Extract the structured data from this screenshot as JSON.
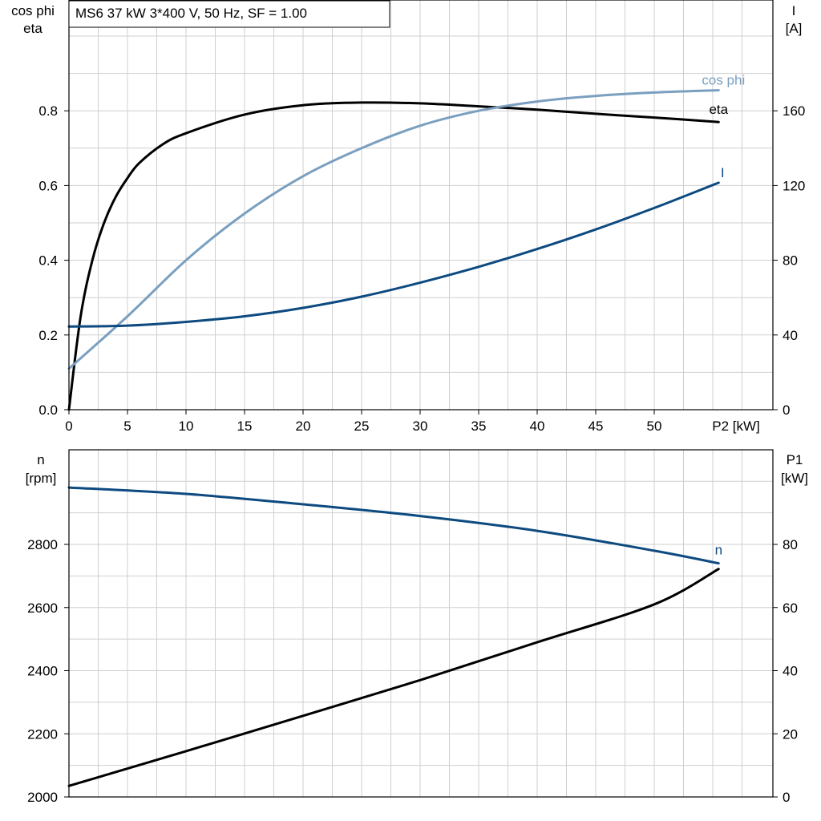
{
  "chart_data": [
    {
      "type": "line",
      "title": "MS6   37 kW   3*400 V, 50 Hz, SF = 1.00",
      "xlabel": "P2 [kW]",
      "ylabel_left": [
        "cos phi",
        "eta"
      ],
      "ylabel_right": [
        "I",
        "[A]"
      ],
      "xlim": [
        0,
        60
      ],
      "ylim_left": [
        0,
        1.0
      ],
      "ylim_right": [
        0,
        200
      ],
      "x_ticks": [
        "0",
        "5",
        "10",
        "15",
        "20",
        "25",
        "30",
        "35",
        "40",
        "45",
        "50"
      ],
      "y_ticks_left": [
        "0.0",
        "0.2",
        "0.4",
        "0.6",
        "0.8"
      ],
      "y_ticks_right": [
        "0",
        "40",
        "80",
        "120",
        "160"
      ],
      "grid": true,
      "colors": {
        "eta": "#000000",
        "cos_phi": "#7a9fbf",
        "I": "#0d4a80"
      },
      "series": [
        {
          "name": "eta",
          "axis": "left",
          "x": [
            0,
            1,
            2,
            3,
            4,
            5,
            6,
            8,
            10,
            15,
            20,
            25,
            30,
            35,
            40,
            45,
            50,
            55.5
          ],
          "values": [
            0,
            0.25,
            0.4,
            0.5,
            0.57,
            0.62,
            0.66,
            0.71,
            0.74,
            0.79,
            0.815,
            0.822,
            0.82,
            0.812,
            0.803,
            0.792,
            0.782,
            0.77
          ]
        },
        {
          "name": "cos phi",
          "axis": "left",
          "x": [
            0,
            5,
            10,
            15,
            20,
            25,
            30,
            35,
            40,
            45,
            50,
            55.5
          ],
          "values": [
            0.11,
            0.25,
            0.4,
            0.525,
            0.625,
            0.7,
            0.76,
            0.8,
            0.825,
            0.84,
            0.849,
            0.855
          ]
        },
        {
          "name": "I",
          "axis": "right",
          "x": [
            0,
            5,
            10,
            15,
            20,
            25,
            30,
            35,
            40,
            45,
            50,
            55.5
          ],
          "values": [
            44.5,
            45,
            47,
            50,
            54.5,
            60.5,
            68,
            76.5,
            86,
            96.5,
            108,
            121.5
          ]
        }
      ]
    },
    {
      "type": "line",
      "xlim": [
        0,
        60
      ],
      "ylabel_left": [
        "n",
        "[rpm]"
      ],
      "ylabel_right": [
        "P1",
        "[kW]"
      ],
      "ylim_left": [
        2000,
        3000
      ],
      "ylim_right": [
        0,
        100
      ],
      "y_ticks_left": [
        "2000",
        "2200",
        "2400",
        "2600",
        "2800"
      ],
      "y_ticks_right": [
        "0",
        "20",
        "40",
        "60",
        "80"
      ],
      "grid": true,
      "colors": {
        "n": "#0d4a80",
        "P1": "#000000"
      },
      "series": [
        {
          "name": "n",
          "axis": "left",
          "x": [
            0,
            10,
            20,
            30,
            40,
            50,
            55.5
          ],
          "values": [
            2980,
            2960,
            2927,
            2890,
            2843,
            2780,
            2740
          ]
        },
        {
          "axis": "right",
          "x": [
            0,
            10,
            20,
            30,
            40,
            50,
            55.5
          ],
          "values": [
            3.5,
            14.5,
            25.7,
            37,
            49,
            61,
            72.2
          ]
        }
      ]
    }
  ]
}
